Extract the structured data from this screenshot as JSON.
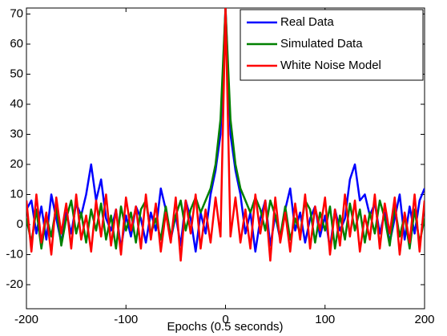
{
  "chart_data": {
    "type": "line",
    "xlabel": "Epochs (0.5 seconds)",
    "x": [
      -200,
      -195,
      -190,
      -185,
      -180,
      -175,
      -170,
      -165,
      -160,
      -155,
      -150,
      -145,
      -140,
      -135,
      -130,
      -125,
      -120,
      -115,
      -110,
      -105,
      -100,
      -95,
      -90,
      -85,
      -80,
      -75,
      -70,
      -65,
      -60,
      -55,
      -50,
      -45,
      -40,
      -35,
      -30,
      -25,
      -20,
      -15,
      -10,
      -5,
      0,
      5,
      10,
      15,
      20,
      25,
      30,
      35,
      40,
      45,
      50,
      55,
      60,
      65,
      70,
      75,
      80,
      85,
      90,
      95,
      100,
      105,
      110,
      115,
      120,
      125,
      130,
      135,
      140,
      145,
      150,
      155,
      160,
      165,
      170,
      175,
      180,
      185,
      190,
      195,
      200
    ],
    "series": [
      {
        "name": "Real Data",
        "color": "#0000ff",
        "values": [
          5,
          8,
          -3,
          6,
          -5,
          10,
          2,
          -6,
          4,
          -3,
          7,
          3,
          10,
          20,
          8,
          15,
          2,
          -2,
          5,
          -8,
          3,
          -4,
          6,
          2,
          -6,
          4,
          -2,
          12,
          5,
          -5,
          3,
          -7,
          8,
          2,
          -9,
          4,
          -3,
          10,
          18,
          30,
          72,
          30,
          18,
          10,
          -3,
          4,
          -9,
          2,
          8,
          -7,
          3,
          -5,
          5,
          12,
          -2,
          4,
          -6,
          2,
          6,
          -4,
          3,
          -8,
          5,
          -2,
          2,
          15,
          20,
          8,
          10,
          3,
          7,
          -3,
          4,
          -6,
          2,
          10,
          -5,
          6,
          -3,
          8,
          12
        ]
      },
      {
        "name": "Simulated Data",
        "color": "#008000",
        "values": [
          2,
          -6,
          5,
          -8,
          3,
          -4,
          6,
          -7,
          2,
          8,
          -3,
          4,
          -6,
          5,
          -2,
          7,
          -5,
          3,
          -8,
          6,
          -2,
          4,
          -6,
          5,
          8,
          -3,
          2,
          -5,
          6,
          -4,
          3,
          8,
          -2,
          5,
          9,
          4,
          8,
          12,
          20,
          35,
          72,
          35,
          20,
          12,
          8,
          4,
          9,
          5,
          -2,
          8,
          3,
          -4,
          6,
          -5,
          2,
          -3,
          8,
          5,
          -6,
          4,
          -2,
          6,
          -8,
          3,
          -5,
          7,
          -2,
          5,
          -6,
          4,
          -3,
          8,
          2,
          -7,
          6,
          -4,
          3,
          -8,
          5,
          -6,
          2
        ]
      },
      {
        "name": "White Noise Model",
        "color": "#ff0000",
        "values": [
          8,
          -9,
          10,
          -6,
          4,
          -10,
          9,
          -3,
          7,
          -8,
          10,
          -5,
          3,
          -9,
          8,
          -4,
          10,
          -7,
          5,
          -10,
          9,
          -2,
          6,
          -8,
          10,
          -5,
          7,
          -9,
          4,
          -6,
          9,
          -12,
          8,
          -3,
          10,
          -8,
          5,
          -6,
          9,
          -4,
          72,
          -4,
          9,
          -6,
          5,
          -8,
          10,
          -3,
          8,
          -12,
          9,
          -6,
          4,
          -9,
          7,
          -5,
          10,
          -8,
          6,
          -2,
          9,
          -10,
          5,
          -7,
          10,
          -4,
          8,
          -9,
          3,
          -5,
          10,
          -8,
          7,
          -3,
          9,
          -10,
          4,
          -6,
          10,
          -9,
          8
        ]
      }
    ],
    "xlim": [
      -200,
      200
    ],
    "ylim": [
      -28,
      72
    ],
    "xticks": [
      -200,
      -100,
      0,
      100,
      200
    ],
    "yticks": [
      -20,
      -10,
      0,
      10,
      20,
      30,
      40,
      50,
      60,
      70
    ],
    "legend": "upper right"
  }
}
